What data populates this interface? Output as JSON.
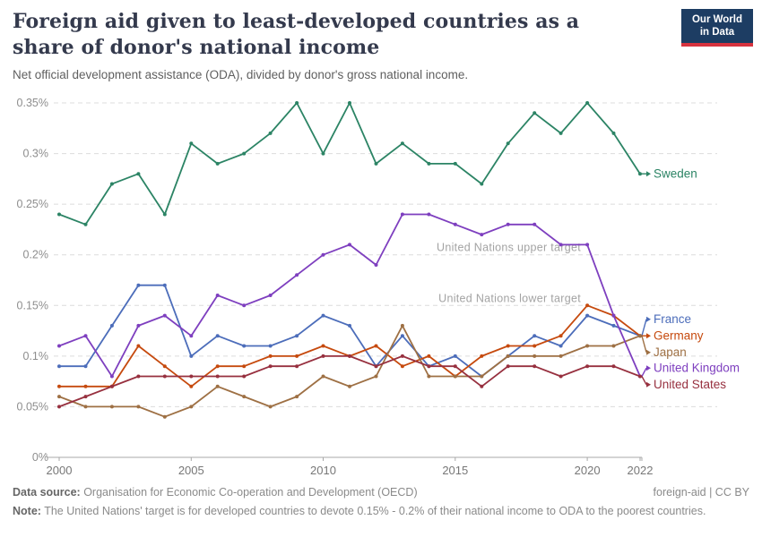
{
  "header": {
    "title": "Foreign aid given to least-developed countries as a share of donor's national income",
    "subtitle": "Net official development assistance (ODA), divided by donor's gross national income.",
    "logo": {
      "line1": "Our World",
      "line2": "in Data",
      "bg_color": "#1D3D63",
      "accent_color": "#D7333F"
    }
  },
  "chart_data": {
    "type": "line",
    "x": [
      2000,
      2001,
      2002,
      2003,
      2004,
      2005,
      2006,
      2007,
      2008,
      2009,
      2010,
      2011,
      2012,
      2013,
      2014,
      2015,
      2016,
      2017,
      2018,
      2019,
      2020,
      2021,
      2022
    ],
    "x_ticks": [
      2000,
      2005,
      2010,
      2015,
      2020,
      2022
    ],
    "y_ticks": [
      {
        "value": 0,
        "label": "0%"
      },
      {
        "value": 0.05,
        "label": "0.05%"
      },
      {
        "value": 0.1,
        "label": "0.1%"
      },
      {
        "value": 0.15,
        "label": "0.15%"
      },
      {
        "value": 0.2,
        "label": "0.2%"
      },
      {
        "value": 0.25,
        "label": "0.25%"
      },
      {
        "value": 0.3,
        "label": "0.3%"
      },
      {
        "value": 0.35,
        "label": "0.35%"
      }
    ],
    "ylim": [
      0,
      0.35
    ],
    "grid": true,
    "legend_position": "right-of-line-ends",
    "unit": "%",
    "annotations": [
      {
        "text": "United Nations upper target",
        "y": 0.2
      },
      {
        "text": "United Nations lower target",
        "y": 0.15
      }
    ],
    "series": [
      {
        "name": "Sweden",
        "color": "#2C8465",
        "values": [
          0.24,
          0.23,
          0.27,
          0.28,
          0.24,
          0.31,
          0.29,
          0.3,
          0.32,
          0.35,
          0.3,
          0.35,
          0.29,
          0.31,
          0.29,
          0.29,
          0.27,
          0.31,
          0.34,
          0.32,
          0.35,
          0.32,
          0.28
        ]
      },
      {
        "name": "France",
        "color": "#4C6DBA",
        "values": [
          0.09,
          0.09,
          0.13,
          0.17,
          0.17,
          0.1,
          0.12,
          0.11,
          0.11,
          0.12,
          0.14,
          0.13,
          0.09,
          0.12,
          0.09,
          0.1,
          0.08,
          0.1,
          0.12,
          0.11,
          0.14,
          0.13,
          0.12
        ]
      },
      {
        "name": "Germany",
        "color": "#C64A0E",
        "values": [
          0.07,
          0.07,
          0.07,
          0.11,
          0.09,
          0.07,
          0.09,
          0.09,
          0.1,
          0.1,
          0.11,
          0.1,
          0.11,
          0.09,
          0.1,
          0.08,
          0.1,
          0.11,
          0.11,
          0.12,
          0.15,
          0.14,
          0.12
        ]
      },
      {
        "name": "Japan",
        "color": "#9E7044",
        "values": [
          0.06,
          0.05,
          0.05,
          0.05,
          0.04,
          0.05,
          0.07,
          0.06,
          0.05,
          0.06,
          0.08,
          0.07,
          0.08,
          0.13,
          0.08,
          0.08,
          0.08,
          0.1,
          0.1,
          0.1,
          0.11,
          0.11,
          0.12
        ]
      },
      {
        "name": "United Kingdom",
        "color": "#7E3FBF",
        "values": [
          0.11,
          0.12,
          0.08,
          0.13,
          0.14,
          0.12,
          0.16,
          0.15,
          0.16,
          0.18,
          0.2,
          0.21,
          0.19,
          0.24,
          0.24,
          0.23,
          0.22,
          0.23,
          0.23,
          0.21,
          0.21,
          0.14,
          0.08
        ]
      },
      {
        "name": "United States",
        "color": "#97303F",
        "values": [
          0.05,
          0.06,
          0.07,
          0.08,
          0.08,
          0.08,
          0.08,
          0.08,
          0.09,
          0.09,
          0.1,
          0.1,
          0.09,
          0.1,
          0.09,
          0.09,
          0.07,
          0.09,
          0.09,
          0.08,
          0.09,
          0.09,
          0.08
        ]
      }
    ]
  },
  "footer": {
    "source_label": "Data source:",
    "source_text": " Organisation for Economic Co-operation and Development (OECD)",
    "rights": "foreign-aid | CC BY",
    "note_label": "Note:",
    "note_text": " The United Nations' target is for developed countries to devote 0.15% - 0.2% of their national income to ODA to the poorest countries."
  }
}
